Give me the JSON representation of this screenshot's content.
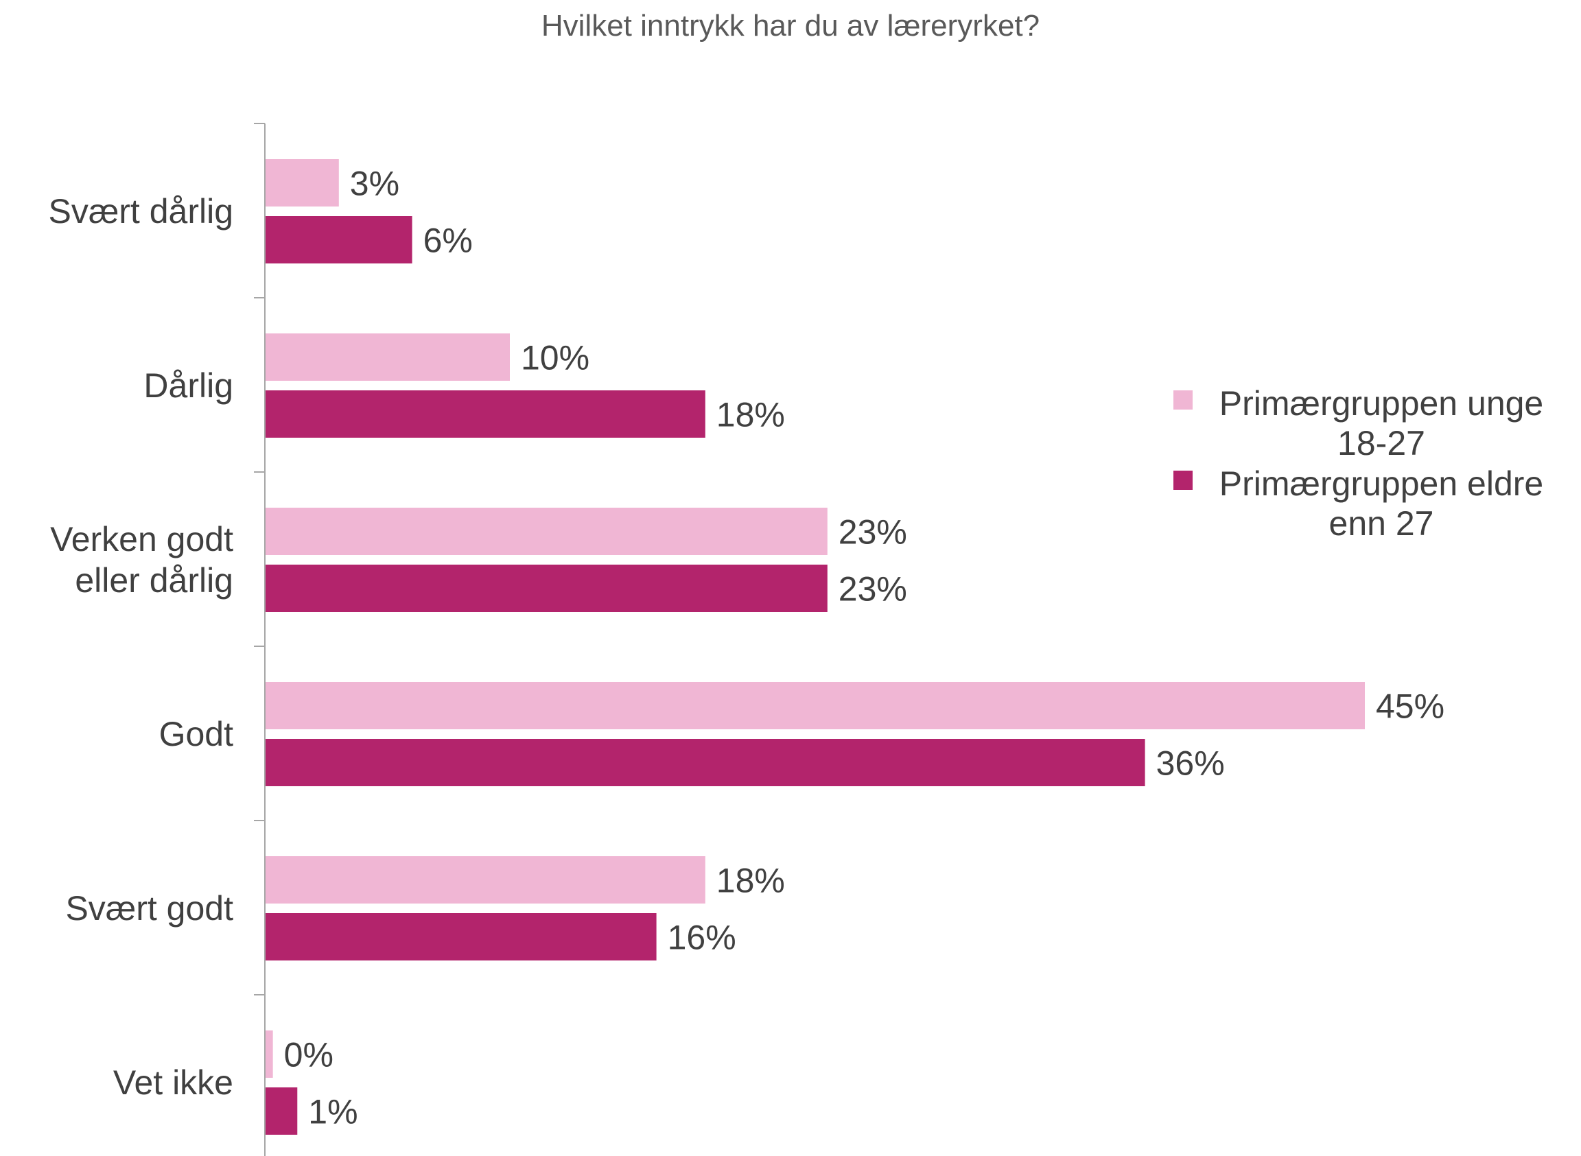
{
  "chart_data": {
    "type": "bar",
    "orientation": "horizontal",
    "title": "Hvilket inntrykk har du av læreryrket?",
    "xlabel": "",
    "ylabel": "",
    "categories": [
      "Svært dårlig",
      "Dårlig",
      "Verken godt eller dårlig",
      "Godt",
      "Svært godt",
      "Vet ikke"
    ],
    "category_lines": [
      [
        "Svært dårlig"
      ],
      [
        "Dårlig"
      ],
      [
        "Verken godt",
        "eller dårlig"
      ],
      [
        "Godt"
      ],
      [
        "Svært godt"
      ],
      [
        "Vet ikke"
      ]
    ],
    "series": [
      {
        "name": "Primærgruppen unge 18-27",
        "name_lines": [
          "Primærgruppen unge",
          "18-27"
        ],
        "color": "#F0B6D4",
        "values": [
          3,
          10,
          23,
          45,
          18,
          0.3
        ],
        "labels": [
          "3%",
          "10%",
          "23%",
          "45%",
          "18%",
          "0%"
        ]
      },
      {
        "name": "Primærgruppen eldre enn 27",
        "name_lines": [
          "Primærgruppen eldre",
          "enn 27"
        ],
        "color": "#B3246C",
        "values": [
          6,
          18,
          23,
          36,
          16,
          1.3
        ],
        "labels": [
          "6%",
          "18%",
          "23%",
          "36%",
          "16%",
          "1%"
        ]
      }
    ],
    "value_unit": "%",
    "grid": false,
    "legend_position": "right",
    "axis_color": "#A6A6A6"
  }
}
